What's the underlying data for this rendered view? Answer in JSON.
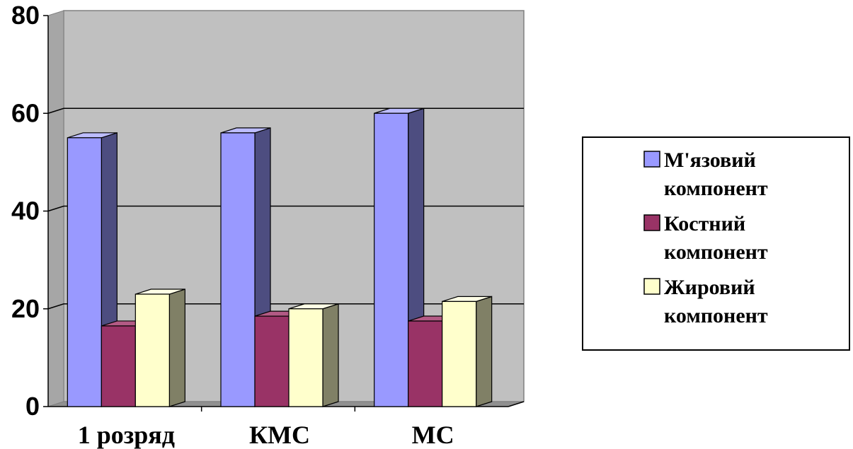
{
  "chart_data": {
    "type": "bar",
    "categories": [
      "1 розряд",
      "КМС",
      "МС"
    ],
    "series": [
      {
        "name": "М'язовий компонент",
        "values": [
          55,
          56,
          60
        ],
        "color": "#9999ff",
        "side_color": "#4d4d80",
        "top_color": "#bdbdff"
      },
      {
        "name": "Костний компонент",
        "values": [
          16.5,
          18.5,
          17.5
        ],
        "color": "#993366",
        "side_color": "#4d1a33",
        "top_color": "#b35a85"
      },
      {
        "name": "Жировий компонент",
        "values": [
          23,
          20,
          21.5
        ],
        "color": "#ffffcc",
        "side_color": "#808066",
        "top_color": "#ffffe6"
      }
    ],
    "ylim": [
      0,
      80
    ],
    "yticks": [
      "0",
      "20",
      "40",
      "60",
      "80"
    ],
    "grid": true,
    "legend_position": "right",
    "wall_color": "#c0c0c0"
  }
}
